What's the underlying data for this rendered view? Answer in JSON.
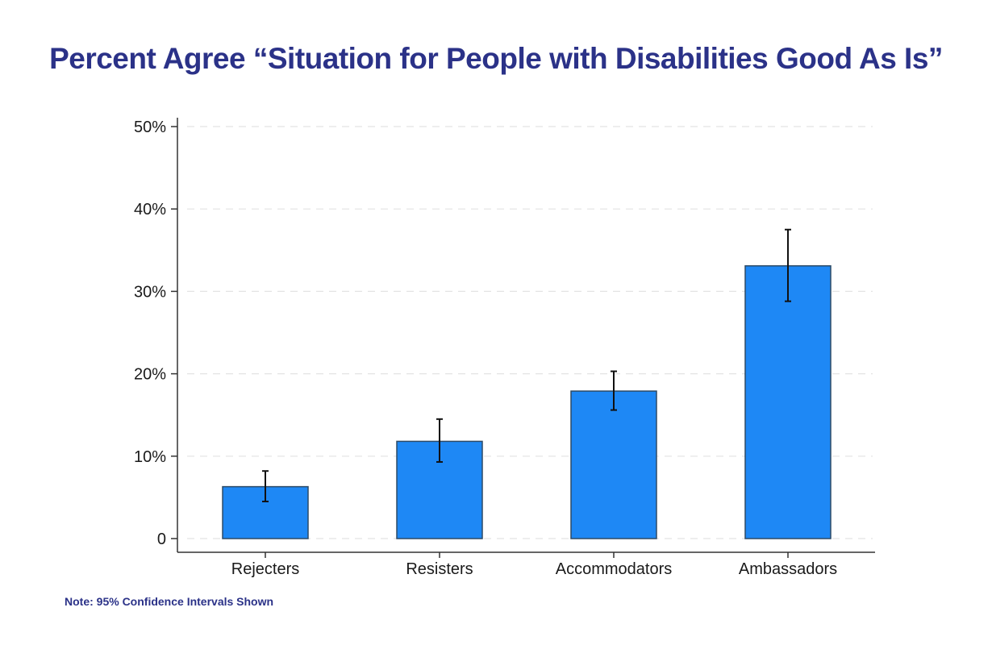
{
  "chart_data": {
    "type": "bar",
    "title": "Percent Agree “Situation for People with Disabilities Good As Is”",
    "xlabel": "",
    "ylabel": "",
    "categories": [
      "Rejecters",
      "Resisters",
      "Accommodators",
      "Ambassadors"
    ],
    "values": [
      6.3,
      11.8,
      17.9,
      33.1
    ],
    "ci_low": [
      4.5,
      9.3,
      15.6,
      28.8
    ],
    "ci_high": [
      8.2,
      14.5,
      20.3,
      37.5
    ],
    "ylim": [
      0,
      50
    ],
    "yticks": [
      0,
      10,
      20,
      30,
      40,
      50
    ],
    "ytick_labels": [
      "0",
      "10%",
      "20%",
      "30%",
      "40%",
      "50%"
    ],
    "grid": true,
    "bar_color": "#1e88f5",
    "bar_edge_color": "#2d4a66",
    "note": "Note: 95% Confidence Intervals Shown"
  },
  "colors": {
    "title": "#2b3288",
    "note": "#2b3288"
  }
}
